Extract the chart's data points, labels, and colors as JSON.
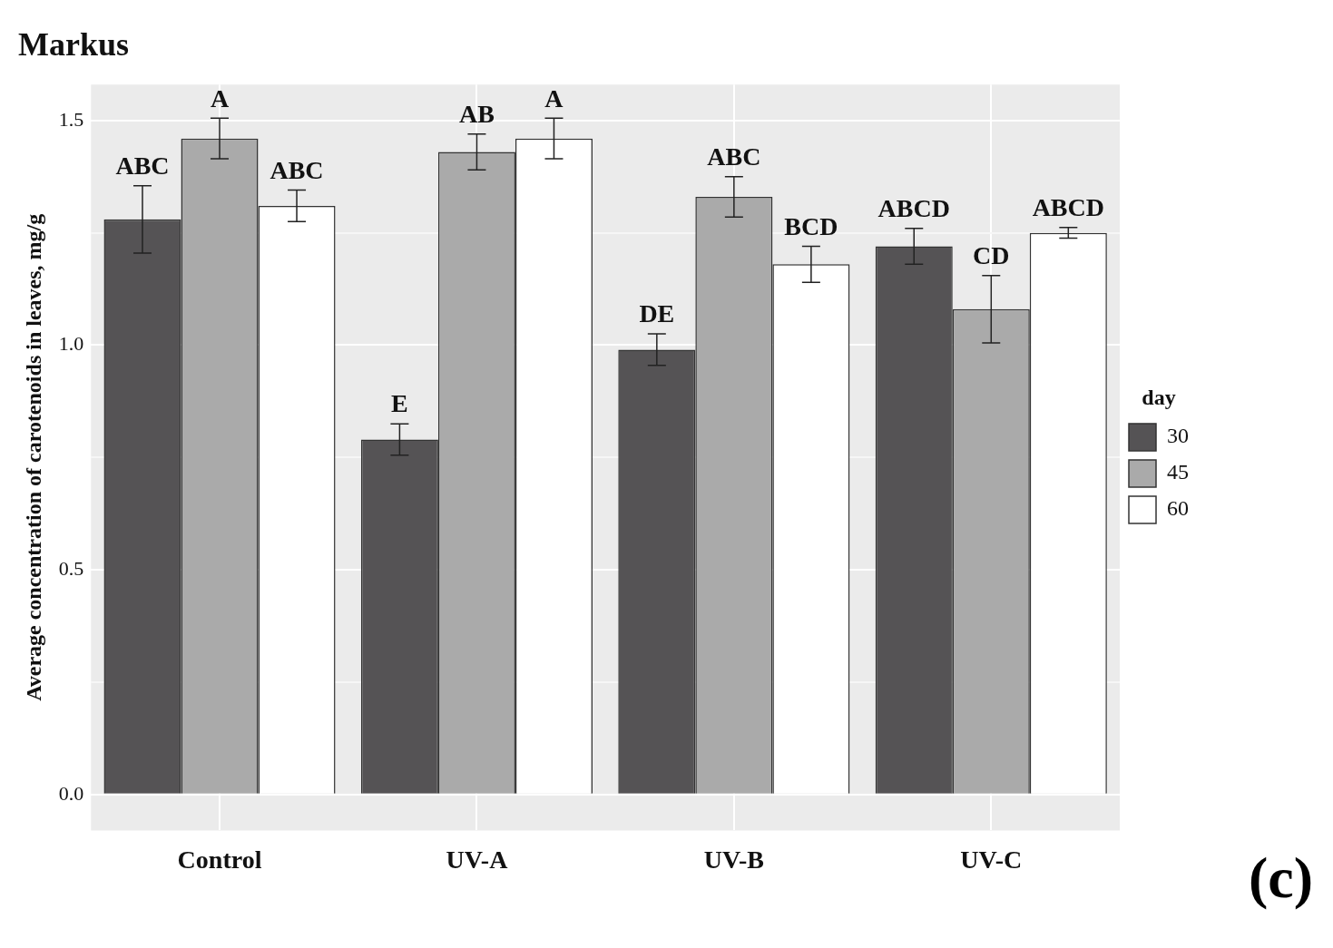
{
  "chart_data": {
    "type": "bar",
    "title": "Markus",
    "ylabel": "Average concentration of carotenoids in leaves, mg/g",
    "legend_title": "day",
    "legend": "right",
    "grid": true,
    "categories": [
      "Control",
      "UV-A",
      "UV-B",
      "UV-C"
    ],
    "series": [
      {
        "name": "30",
        "color": "#555355",
        "values": [
          1.28,
          0.79,
          0.99,
          1.22
        ],
        "errors": [
          0.075,
          0.035,
          0.035,
          0.04
        ],
        "value_labels": [
          "ABC",
          "E",
          "DE",
          "ABCD"
        ]
      },
      {
        "name": "45",
        "color": "#aaaaaa",
        "values": [
          1.46,
          1.43,
          1.33,
          1.08
        ],
        "errors": [
          0.045,
          0.04,
          0.045,
          0.075
        ],
        "value_labels": [
          "A",
          "AB",
          "ABC",
          "CD"
        ]
      },
      {
        "name": "60",
        "color": "#ffffff",
        "values": [
          1.31,
          1.46,
          1.18,
          1.25
        ],
        "errors": [
          0.035,
          0.045,
          0.04,
          0.012
        ],
        "value_labels": [
          "ABC",
          "A",
          "BCD",
          "ABCD"
        ]
      }
    ],
    "ylim": [
      -0.08,
      1.58
    ],
    "yticks": [
      {
        "value": 0,
        "label": "0.0"
      },
      {
        "value": 0.25,
        "label": null
      },
      {
        "value": 0.5,
        "label": "0.5"
      },
      {
        "value": 0.75,
        "label": null
      },
      {
        "value": 1,
        "label": "1.0"
      },
      {
        "value": 1.25,
        "label": null
      },
      {
        "value": 1.5,
        "label": "1.5"
      }
    ],
    "annotations": [
      "(c)"
    ]
  }
}
